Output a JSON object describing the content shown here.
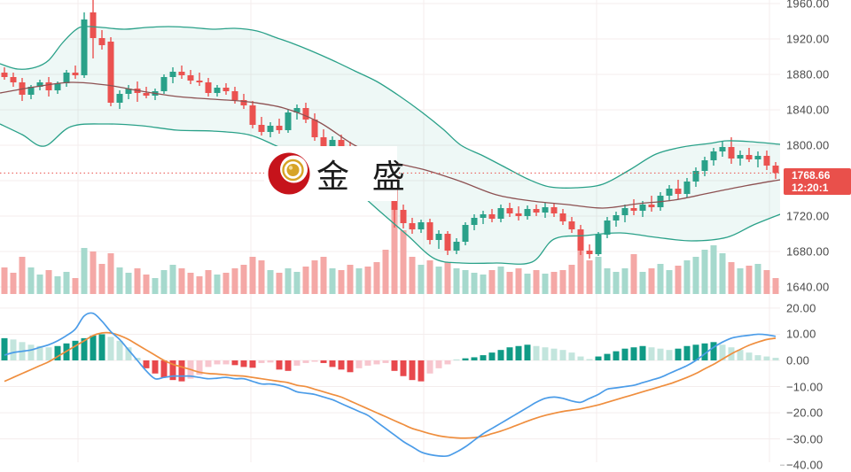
{
  "watermark": {
    "text": "金 盛"
  },
  "price_tag": {
    "price": "1768.66",
    "time": "12:20:1"
  },
  "price_axis": {
    "labels": [
      {
        "text": "1960.00",
        "value": 1960
      },
      {
        "text": "1920.00",
        "value": 1920
      },
      {
        "text": "1880.00",
        "value": 1880
      },
      {
        "text": "1840.00",
        "value": 1840
      },
      {
        "text": "1800.00",
        "value": 1800
      },
      {
        "text": "1720.00",
        "value": 1720
      },
      {
        "text": "1680.00",
        "value": 1680
      },
      {
        "text": "1640.00",
        "value": 1640
      }
    ]
  },
  "macd_axis": {
    "labels": [
      {
        "text": "20.00",
        "value": 20
      },
      {
        "text": "10.00",
        "value": 10
      },
      {
        "text": "0.00",
        "value": 0
      },
      {
        "text": "−10.00",
        "value": -10
      },
      {
        "text": "−20.00",
        "value": -20
      },
      {
        "text": "−30.00",
        "value": -30
      },
      {
        "text": "−40.00",
        "value": -40
      }
    ]
  },
  "colors": {
    "up": "#2aa189",
    "down": "#eb5250",
    "vol_up": "#a6d9cd",
    "vol_down": "#f4a8a6",
    "macd_pos": "#109b86",
    "macd_pos_light": "#c3e5dd",
    "macd_neg": "#e8484c",
    "macd_neg_light": "#f7c6ce",
    "dif_line": "#4b9ce8",
    "dea_line": "#ef8e3e",
    "boll_band": "#2aa189",
    "boll_mid": "#8d5152",
    "boll_fill": "rgba(42,161,137,0.08)",
    "tag": "#e9504b",
    "grid": "#f4eded",
    "axis_line": "#e2e2e2",
    "axis_text": "#4a4a4a",
    "logo_red": "#c6131b",
    "logo_gold": "#d7a427"
  },
  "chart_data": [
    {
      "type": "candlestick",
      "name": "gold-price-main",
      "x_start": 5,
      "x_step": 10,
      "ylim": [
        1631,
        1964
      ],
      "current_price": 1768.66,
      "grid": true,
      "ohlc": [
        [
          1882,
          1888,
          1874,
          1877
        ],
        [
          1877,
          1882,
          1866,
          1871
        ],
        [
          1871,
          1876,
          1850,
          1857
        ],
        [
          1857,
          1868,
          1852,
          1866
        ],
        [
          1866,
          1874,
          1862,
          1871
        ],
        [
          1871,
          1877,
          1855,
          1862
        ],
        [
          1862,
          1872,
          1858,
          1870
        ],
        [
          1870,
          1885,
          1866,
          1882
        ],
        [
          1882,
          1890,
          1875,
          1879
        ],
        [
          1879,
          1950,
          1876,
          1942
        ],
        [
          1950,
          1966,
          1898,
          1921
        ],
        [
          1921,
          1930,
          1908,
          1913
        ],
        [
          1917,
          1922,
          1844,
          1848
        ],
        [
          1848,
          1862,
          1841,
          1858
        ],
        [
          1858,
          1868,
          1852,
          1864
        ],
        [
          1864,
          1872,
          1849,
          1859
        ],
        [
          1859,
          1866,
          1853,
          1856
        ],
        [
          1856,
          1864,
          1851,
          1861
        ],
        [
          1861,
          1880,
          1858,
          1877
        ],
        [
          1877,
          1888,
          1870,
          1883
        ],
        [
          1883,
          1890,
          1875,
          1879
        ],
        [
          1879,
          1885,
          1869,
          1873
        ],
        [
          1873,
          1882,
          1867,
          1871
        ],
        [
          1871,
          1876,
          1855,
          1859
        ],
        [
          1859,
          1868,
          1855,
          1865
        ],
        [
          1865,
          1870,
          1857,
          1861
        ],
        [
          1861,
          1866,
          1847,
          1851
        ],
        [
          1851,
          1858,
          1841,
          1845
        ],
        [
          1845,
          1850,
          1819,
          1823
        ],
        [
          1823,
          1832,
          1811,
          1815
        ],
        [
          1815,
          1826,
          1809,
          1822
        ],
        [
          1822,
          1830,
          1813,
          1817
        ],
        [
          1817,
          1840,
          1814,
          1837
        ],
        [
          1837,
          1846,
          1829,
          1842
        ],
        [
          1842,
          1848,
          1825,
          1829
        ],
        [
          1829,
          1836,
          1805,
          1809
        ],
        [
          1809,
          1818,
          1786,
          1793
        ],
        [
          1793,
          1810,
          1789,
          1806
        ],
        [
          1806,
          1812,
          1791,
          1795
        ],
        [
          1795,
          1804,
          1783,
          1787
        ],
        [
          1787,
          1798,
          1779,
          1792
        ],
        [
          1792,
          1796,
          1774,
          1779
        ],
        [
          1779,
          1788,
          1767,
          1771
        ],
        [
          1771,
          1779,
          1755,
          1761
        ],
        [
          1766,
          1773,
          1707,
          1727
        ],
        [
          1727,
          1733,
          1706,
          1712
        ],
        [
          1712,
          1718,
          1700,
          1705
        ],
        [
          1705,
          1716,
          1701,
          1713
        ],
        [
          1713,
          1717,
          1688,
          1693
        ],
        [
          1693,
          1704,
          1683,
          1700
        ],
        [
          1700,
          1703,
          1676,
          1681
        ],
        [
          1681,
          1695,
          1677,
          1691
        ],
        [
          1691,
          1713,
          1687,
          1710
        ],
        [
          1710,
          1722,
          1704,
          1718
        ],
        [
          1718,
          1726,
          1711,
          1722
        ],
        [
          1722,
          1728,
          1713,
          1717
        ],
        [
          1717,
          1733,
          1713,
          1729
        ],
        [
          1729,
          1735,
          1719,
          1723
        ],
        [
          1723,
          1731,
          1715,
          1720
        ],
        [
          1720,
          1732,
          1716,
          1728
        ],
        [
          1728,
          1733,
          1720,
          1724
        ],
        [
          1724,
          1735,
          1718,
          1730
        ],
        [
          1730,
          1734,
          1719,
          1723
        ],
        [
          1723,
          1728,
          1710,
          1714
        ],
        [
          1714,
          1719,
          1701,
          1705
        ],
        [
          1705,
          1710,
          1676,
          1681
        ],
        [
          1681,
          1688,
          1672,
          1677
        ],
        [
          1677,
          1702,
          1675,
          1699
        ],
        [
          1699,
          1719,
          1695,
          1715
        ],
        [
          1715,
          1725,
          1708,
          1721
        ],
        [
          1721,
          1733,
          1713,
          1729
        ],
        [
          1729,
          1739,
          1721,
          1726
        ],
        [
          1726,
          1737,
          1719,
          1733
        ],
        [
          1733,
          1743,
          1725,
          1730
        ],
        [
          1730,
          1747,
          1726,
          1743
        ],
        [
          1743,
          1755,
          1737,
          1751
        ],
        [
          1751,
          1761,
          1739,
          1745
        ],
        [
          1745,
          1763,
          1741,
          1759
        ],
        [
          1759,
          1775,
          1753,
          1771
        ],
        [
          1771,
          1787,
          1765,
          1783
        ],
        [
          1783,
          1797,
          1777,
          1793
        ],
        [
          1793,
          1805,
          1787,
          1798
        ],
        [
          1798,
          1809,
          1779,
          1785
        ],
        [
          1785,
          1794,
          1777,
          1789
        ],
        [
          1789,
          1797,
          1781,
          1784
        ],
        [
          1784,
          1793,
          1775,
          1788
        ],
        [
          1788,
          1794,
          1772,
          1777
        ],
        [
          1777,
          1781,
          1762,
          1768.66
        ]
      ],
      "boll_upper": [
        [
          0,
          1892
        ],
        [
          20,
          1886
        ],
        [
          40,
          1888
        ],
        [
          55,
          1896
        ],
        [
          70,
          1915
        ],
        [
          85,
          1930
        ],
        [
          95,
          1934
        ],
        [
          115,
          1933
        ],
        [
          140,
          1931
        ],
        [
          165,
          1933
        ],
        [
          190,
          1934
        ],
        [
          215,
          1933
        ],
        [
          240,
          1931
        ],
        [
          265,
          1932
        ],
        [
          290,
          1929
        ],
        [
          310,
          1922
        ],
        [
          330,
          1915
        ],
        [
          350,
          1907
        ],
        [
          375,
          1896
        ],
        [
          400,
          1884
        ],
        [
          425,
          1872
        ],
        [
          450,
          1856
        ],
        [
          475,
          1838
        ],
        [
          500,
          1818
        ],
        [
          520,
          1800
        ],
        [
          545,
          1788
        ],
        [
          570,
          1775
        ],
        [
          595,
          1762
        ],
        [
          620,
          1753
        ],
        [
          650,
          1752
        ],
        [
          680,
          1756
        ],
        [
          710,
          1772
        ],
        [
          740,
          1790
        ],
        [
          770,
          1798
        ],
        [
          800,
          1802
        ],
        [
          820,
          1805
        ],
        [
          847,
          1804
        ],
        [
          880,
          1801
        ]
      ],
      "boll_mid": [
        [
          0,
          1859
        ],
        [
          40,
          1866
        ],
        [
          80,
          1871
        ],
        [
          120,
          1868
        ],
        [
          160,
          1861
        ],
        [
          200,
          1855
        ],
        [
          240,
          1852
        ],
        [
          280,
          1849
        ],
        [
          320,
          1842
        ],
        [
          360,
          1826
        ],
        [
          400,
          1800
        ],
        [
          440,
          1782
        ],
        [
          480,
          1772
        ],
        [
          520,
          1759
        ],
        [
          560,
          1744
        ],
        [
          600,
          1737
        ],
        [
          640,
          1733
        ],
        [
          680,
          1729
        ],
        [
          720,
          1734
        ],
        [
          760,
          1738
        ],
        [
          800,
          1746
        ],
        [
          840,
          1754
        ],
        [
          880,
          1761
        ]
      ],
      "boll_lower": [
        [
          0,
          1824
        ],
        [
          25,
          1812
        ],
        [
          50,
          1799
        ],
        [
          80,
          1821
        ],
        [
          120,
          1824
        ],
        [
          160,
          1822
        ],
        [
          200,
          1817
        ],
        [
          240,
          1816
        ],
        [
          280,
          1812
        ],
        [
          310,
          1800
        ],
        [
          340,
          1786
        ],
        [
          370,
          1770
        ],
        [
          400,
          1750
        ],
        [
          430,
          1724
        ],
        [
          460,
          1698
        ],
        [
          490,
          1672
        ],
        [
          520,
          1667
        ],
        [
          560,
          1667
        ],
        [
          600,
          1668
        ],
        [
          625,
          1694
        ],
        [
          660,
          1698
        ],
        [
          700,
          1701
        ],
        [
          740,
          1696
        ],
        [
          780,
          1692
        ],
        [
          820,
          1696
        ],
        [
          850,
          1710
        ],
        [
          880,
          1722
        ]
      ]
    },
    {
      "type": "bar",
      "name": "volume",
      "values": [
        30,
        24,
        42,
        30,
        22,
        27,
        20,
        25,
        18,
        52,
        48,
        34,
        46,
        30,
        24,
        29,
        22,
        18,
        27,
        33,
        29,
        24,
        20,
        27,
        22,
        24,
        29,
        33,
        42,
        38,
        27,
        24,
        29,
        25,
        31,
        38,
        42,
        29,
        27,
        33,
        29,
        31,
        36,
        50,
        95,
        72,
        42,
        33,
        38,
        31,
        36,
        29,
        27,
        24,
        22,
        27,
        31,
        25,
        29,
        23,
        27,
        23,
        25,
        27,
        33,
        50,
        38,
        42,
        29,
        25,
        29,
        45,
        25,
        29,
        34,
        27,
        32,
        38,
        42,
        50,
        55,
        46,
        36,
        29,
        32,
        34,
        27,
        18
      ]
    },
    {
      "type": "macd",
      "name": "macd-12-26-9",
      "ylim": [
        -40,
        20
      ],
      "hist": [
        8.5,
        8,
        7,
        6,
        5.5,
        5,
        5.5,
        6.5,
        7.5,
        8.5,
        9.5,
        10,
        9,
        7.5,
        5,
        1,
        -3,
        -5,
        -6.5,
        -7.5,
        -8,
        -7,
        -5.5,
        -2.5,
        -1.5,
        -1.5,
        -1.8,
        -2.5,
        -2.8,
        -1,
        -0.8,
        -3.5,
        -4,
        -2,
        -1,
        -0.5,
        -1,
        -2.5,
        -3.5,
        -4.5,
        -3,
        -2,
        -1.5,
        -1,
        -4,
        -6,
        -7.5,
        -8,
        -5,
        -3,
        -1.5,
        0.3,
        0.8,
        1.2,
        2,
        3,
        4,
        5,
        5.5,
        6,
        5.5,
        5,
        4.5,
        4,
        3,
        1.5,
        0.5,
        1.5,
        2.5,
        3.5,
        4.5,
        5,
        5.5,
        5,
        4.5,
        4,
        4.5,
        5.5,
        6,
        6.5,
        7,
        6,
        5,
        4,
        3,
        2,
        1.5,
        1
      ],
      "dif": [
        2,
        3,
        3.5,
        4,
        5,
        6,
        7.5,
        9.5,
        12,
        17,
        18,
        15,
        11,
        8,
        4,
        0,
        -4,
        -7,
        -6.5,
        -6,
        -6,
        -6,
        -6.5,
        -7,
        -6.8,
        -6.5,
        -7,
        -7,
        -8,
        -9,
        -9,
        -9.5,
        -10.5,
        -12,
        -12.5,
        -13,
        -14,
        -15,
        -16.5,
        -18,
        -19.5,
        -21,
        -23.5,
        -26,
        -28.5,
        -31,
        -33,
        -35,
        -36,
        -36.5,
        -36.5,
        -35,
        -33,
        -30.5,
        -28,
        -26,
        -24,
        -22,
        -20,
        -18,
        -16,
        -14.5,
        -14,
        -14.5,
        -15.5,
        -16,
        -14.5,
        -13,
        -11,
        -10.5,
        -10,
        -9.5,
        -8.5,
        -7.5,
        -6.5,
        -5,
        -3.5,
        -2,
        0,
        2.5,
        5,
        7,
        8.5,
        9.2,
        9.6,
        10,
        9.8,
        9.2
      ],
      "dea": [
        -8,
        -6.5,
        -5,
        -3.5,
        -2,
        -0.5,
        1.5,
        3.5,
        5.5,
        7.5,
        9.5,
        10.5,
        10.5,
        9.5,
        8,
        6,
        4,
        2,
        0,
        -1.5,
        -2.5,
        -3.5,
        -4.5,
        -5,
        -5.2,
        -5.5,
        -5.8,
        -6,
        -6.5,
        -7,
        -7.5,
        -8,
        -8.5,
        -9.5,
        -10,
        -11,
        -12,
        -13,
        -14,
        -15.5,
        -17,
        -18.5,
        -20,
        -21.5,
        -23,
        -24.5,
        -26,
        -27,
        -28,
        -28.8,
        -29.3,
        -29.6,
        -29.7,
        -29.5,
        -29,
        -28,
        -27,
        -25.8,
        -24.5,
        -23.2,
        -22,
        -21,
        -20.2,
        -19.5,
        -19,
        -18.5,
        -17.8,
        -17,
        -16,
        -15,
        -14,
        -13,
        -12,
        -11,
        -10,
        -9,
        -7.8,
        -6.5,
        -5,
        -3.2,
        -1.5,
        0.5,
        2.5,
        4.2,
        5.8,
        7,
        8,
        8.5
      ]
    }
  ]
}
